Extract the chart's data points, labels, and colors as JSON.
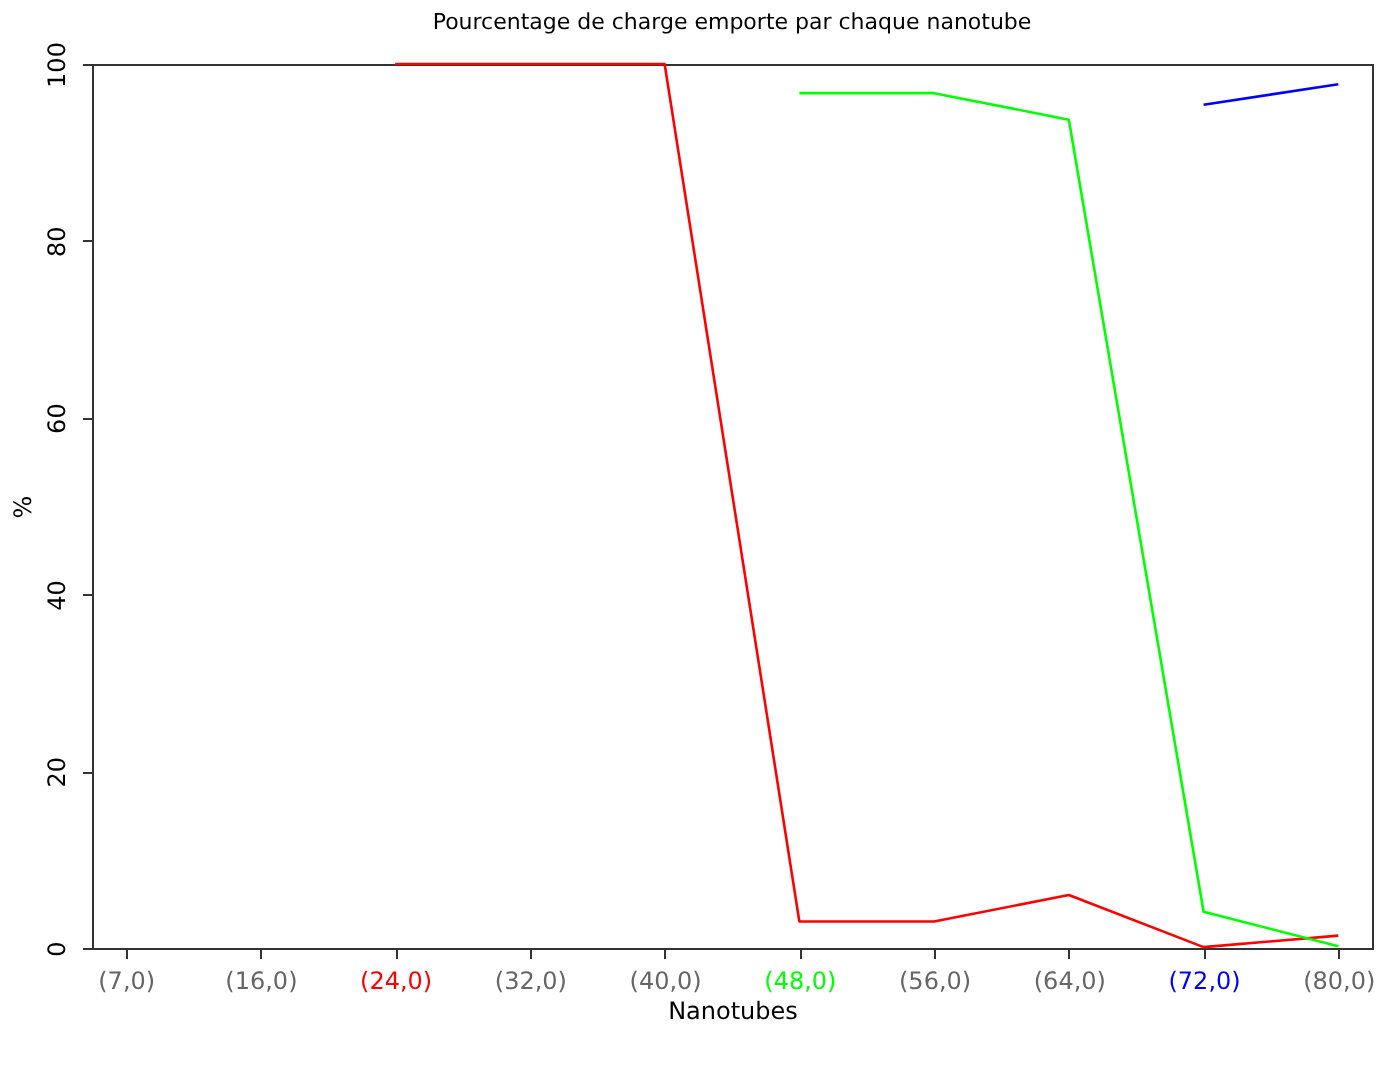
{
  "chart_data": {
    "type": "line",
    "title": "Pourcentage de charge emporte par chaque nanotube",
    "xlabel": "Nanotubes",
    "ylabel": "%",
    "categories": [
      "(7,0)",
      "(16,0)",
      "(24,0)",
      "(32,0)",
      "(40,0)",
      "(48,0)",
      "(56,0)",
      "(64,0)",
      "(72,0)",
      "(80,0)"
    ],
    "series": [
      {
        "color": "#ff0000",
        "values": [
          null,
          null,
          100,
          100,
          100,
          3.0,
          3.0,
          6.0,
          0.1,
          1.4
        ]
      },
      {
        "color": "#00ff00",
        "values": [
          null,
          null,
          null,
          null,
          null,
          96.7,
          96.7,
          93.7,
          4.1,
          0.2
        ]
      },
      {
        "color": "#0000ff",
        "values": [
          null,
          null,
          null,
          null,
          null,
          null,
          null,
          null,
          95.4,
          97.7
        ]
      }
    ],
    "ylim": [
      0,
      100
    ],
    "yticks": [
      0,
      20,
      40,
      60,
      80,
      100
    ],
    "grid": false,
    "legend": false,
    "line_style": "solid"
  }
}
